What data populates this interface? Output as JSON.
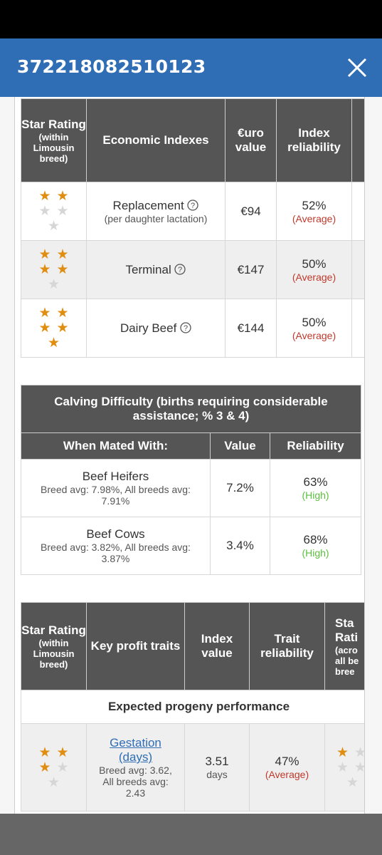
{
  "header": {
    "title": "372218082510123"
  },
  "economic_table": {
    "headers": [
      "Star Rating",
      "(within Limousin breed)",
      "Economic Indexes",
      "€uro value",
      "Index reliability"
    ],
    "rows": [
      {
        "stars": 2,
        "index": "Replacement",
        "sub": "(per daughter lactation)",
        "value": "€94",
        "reliability": "52%",
        "level": "(Average)"
      },
      {
        "stars": 4,
        "index": "Terminal",
        "sub": "",
        "value": "€147",
        "reliability": "50%",
        "level": "(Average)"
      },
      {
        "stars": 5,
        "index": "Dairy Beef",
        "sub": "",
        "value": "€144",
        "reliability": "50%",
        "level": "(Average)"
      }
    ]
  },
  "calving_table": {
    "title": "Calving Difficulty (births requiring considerable assistance; % 3 & 4)",
    "headers": [
      "When Mated With:",
      "Value",
      "Reliability"
    ],
    "rows": [
      {
        "name": "Beef Heifers",
        "detail": "Breed avg: 7.98%, All breeds avg: 7.91%",
        "value": "7.2%",
        "reliability": "63%",
        "level": "(High)"
      },
      {
        "name": "Beef Cows",
        "detail": "Breed avg: 3.82%, All breeds avg: 3.87%",
        "value": "3.4%",
        "reliability": "68%",
        "level": "(High)"
      }
    ]
  },
  "traits_table": {
    "headers": [
      "Star Rating",
      "(within Limousin breed)",
      "Key profit traits",
      "Index value",
      "Trait reliability",
      "Sta",
      "Rati",
      "(acro",
      "all be",
      "bree"
    ],
    "section": "Expected progeny performance",
    "row": {
      "stars": 3,
      "trait_line1": "Gestation",
      "trait_line2": "(days)",
      "detail": "Breed avg: 3.62, All breeds avg: 2.43",
      "value": "3.51",
      "unit": "days",
      "reliability": "47%",
      "level": "(Average)",
      "stars_across": 1
    }
  }
}
